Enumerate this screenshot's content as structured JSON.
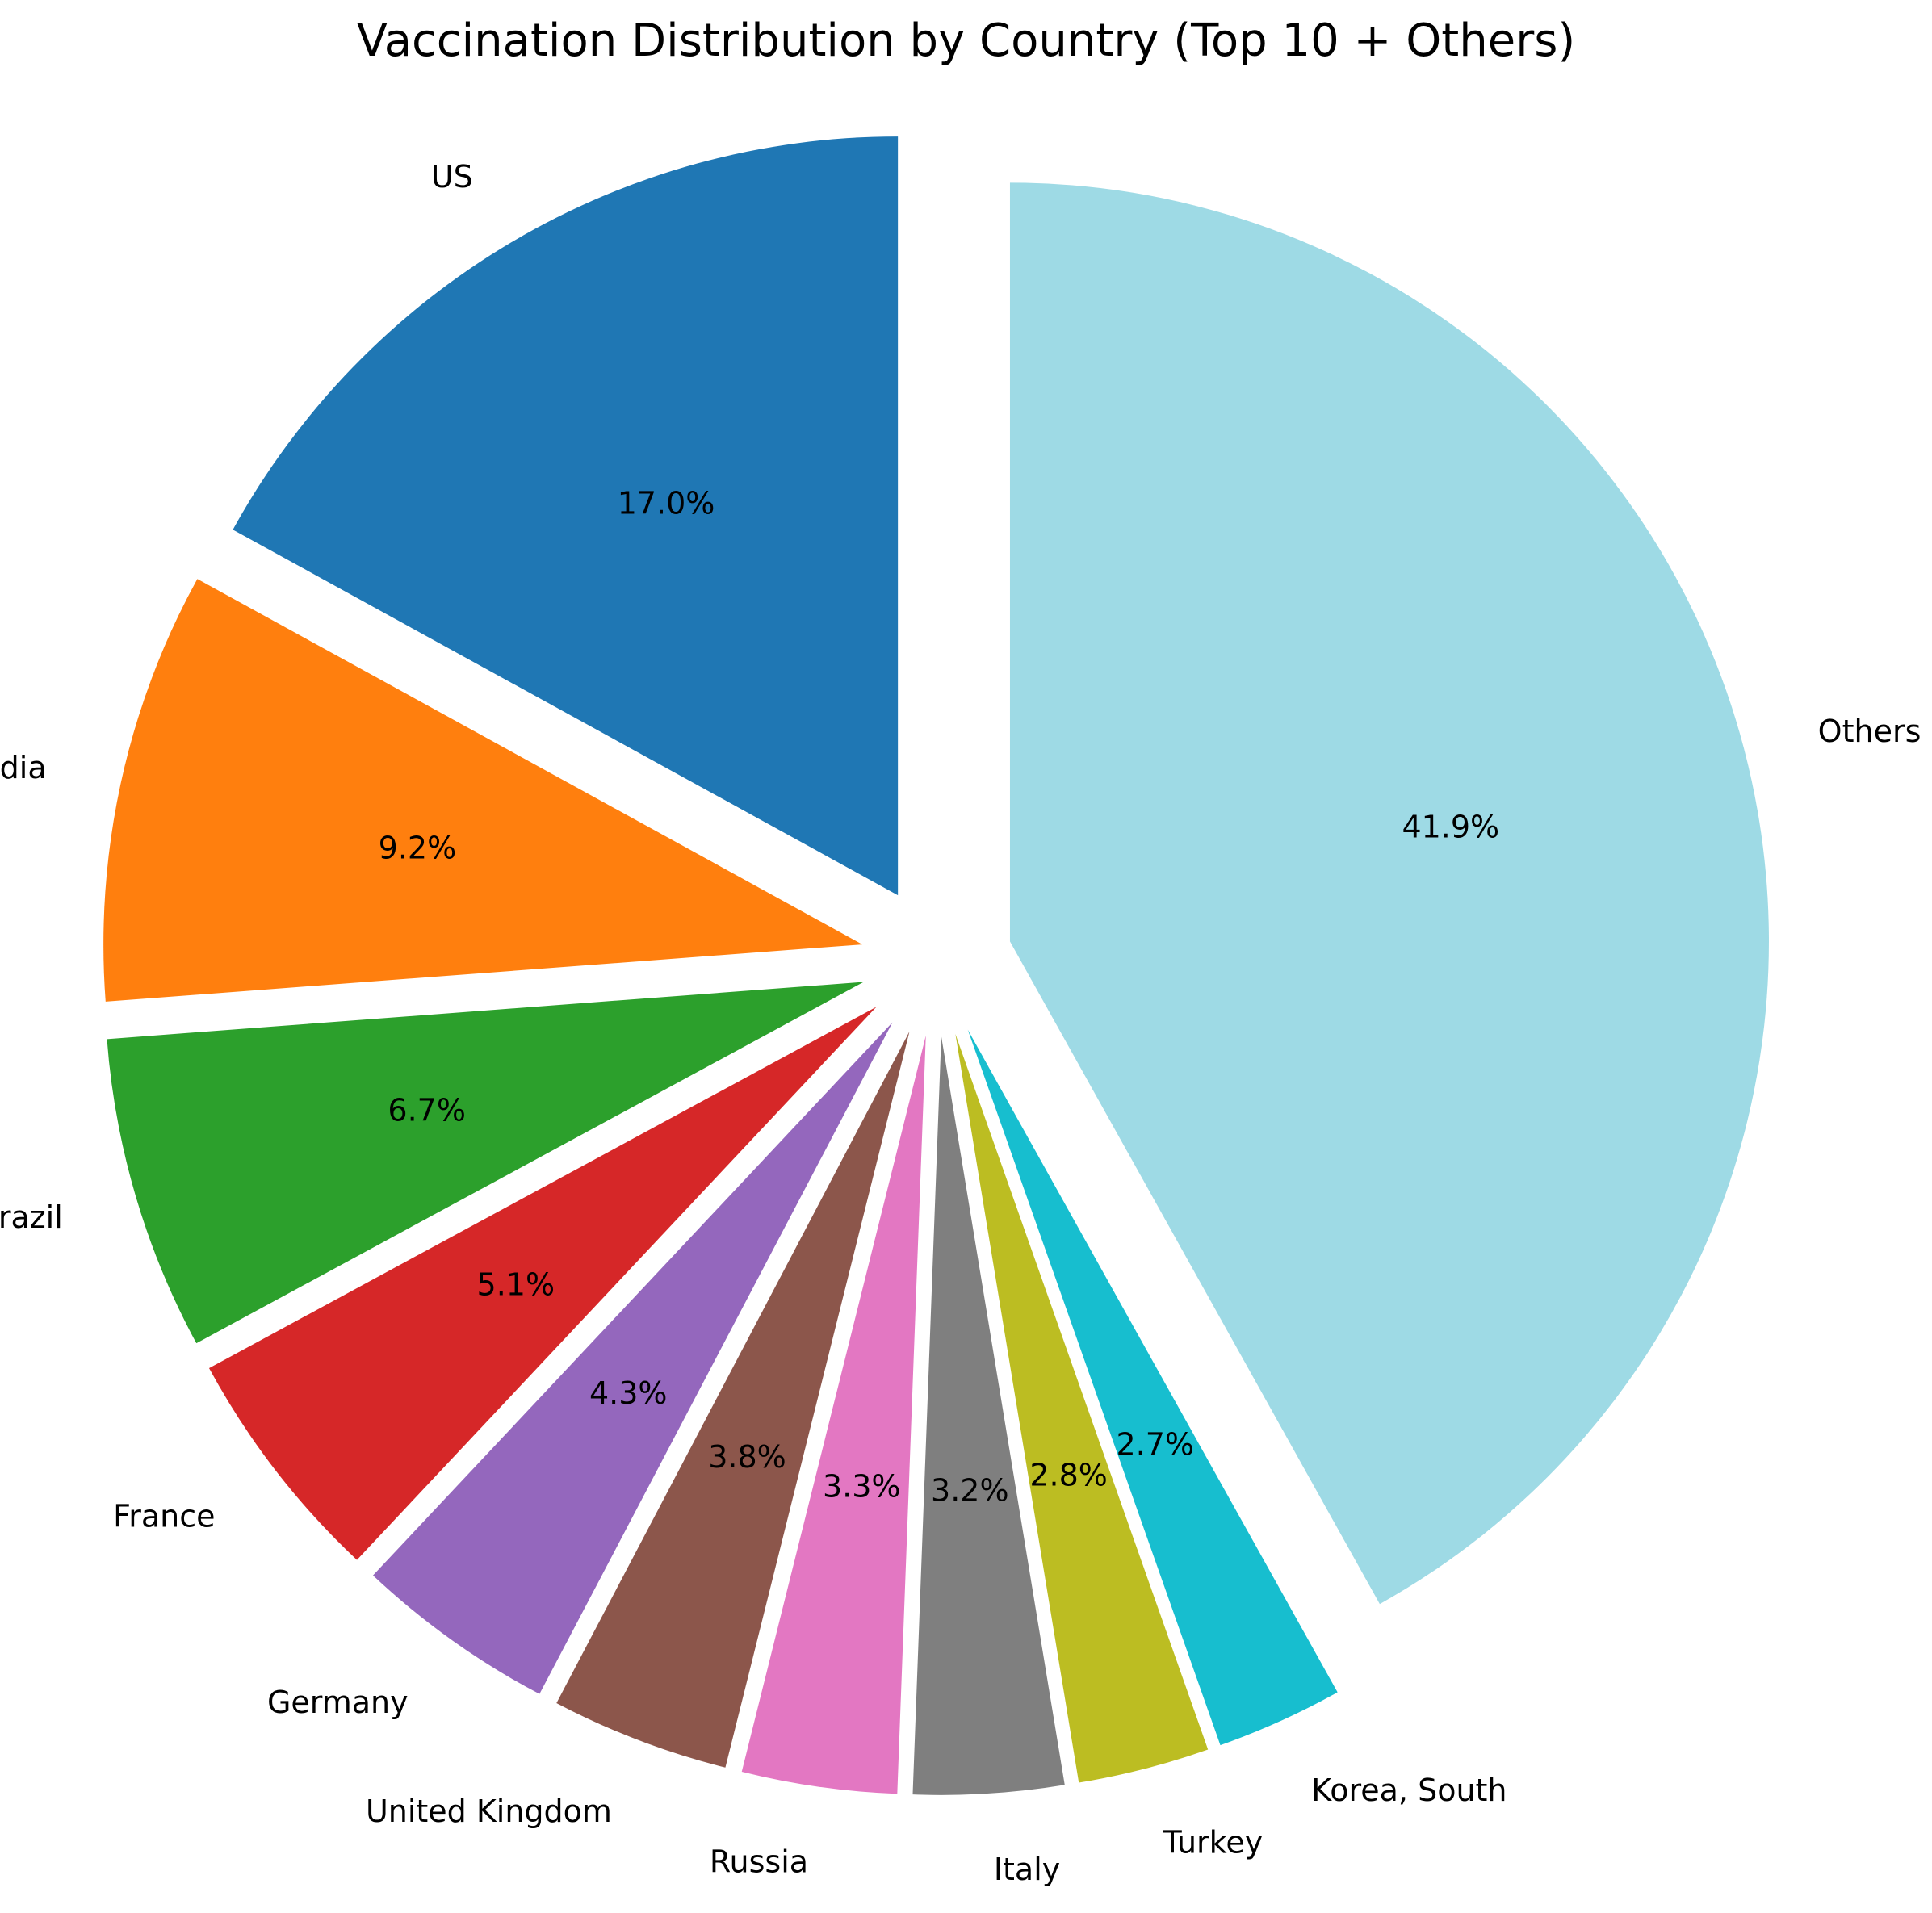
{
  "chart_data": {
    "type": "pie",
    "title": "Vaccination Distribution by Country (Top 10 + Others)",
    "start_angle_deg": 90,
    "direction": "counterclockwise",
    "exploded": true,
    "slices": [
      {
        "label": "US",
        "value": 17.0,
        "pct_label": "17.0%",
        "color": "#1f77b4"
      },
      {
        "label": "India",
        "value": 9.2,
        "pct_label": "9.2%",
        "color": "#ff7f0e"
      },
      {
        "label": "Brazil",
        "value": 6.7,
        "pct_label": "6.7%",
        "color": "#2ca02c"
      },
      {
        "label": "France",
        "value": 5.1,
        "pct_label": "5.1%",
        "color": "#d62728"
      },
      {
        "label": "Germany",
        "value": 4.3,
        "pct_label": "4.3%",
        "color": "#9467bd"
      },
      {
        "label": "United Kingdom",
        "value": 3.8,
        "pct_label": "3.8%",
        "color": "#8c564b"
      },
      {
        "label": "Russia",
        "value": 3.3,
        "pct_label": "3.3%",
        "color": "#e377c2"
      },
      {
        "label": "Italy",
        "value": 3.2,
        "pct_label": "3.2%",
        "color": "#7f7f7f"
      },
      {
        "label": "Turkey",
        "value": 2.8,
        "pct_label": "2.8%",
        "color": "#bcbd22"
      },
      {
        "label": "Korea, South",
        "value": 2.7,
        "pct_label": "2.7%",
        "color": "#17becf"
      },
      {
        "label": "Others",
        "value": 41.9,
        "pct_label": "41.9%",
        "color": "#9edae5"
      }
    ]
  }
}
